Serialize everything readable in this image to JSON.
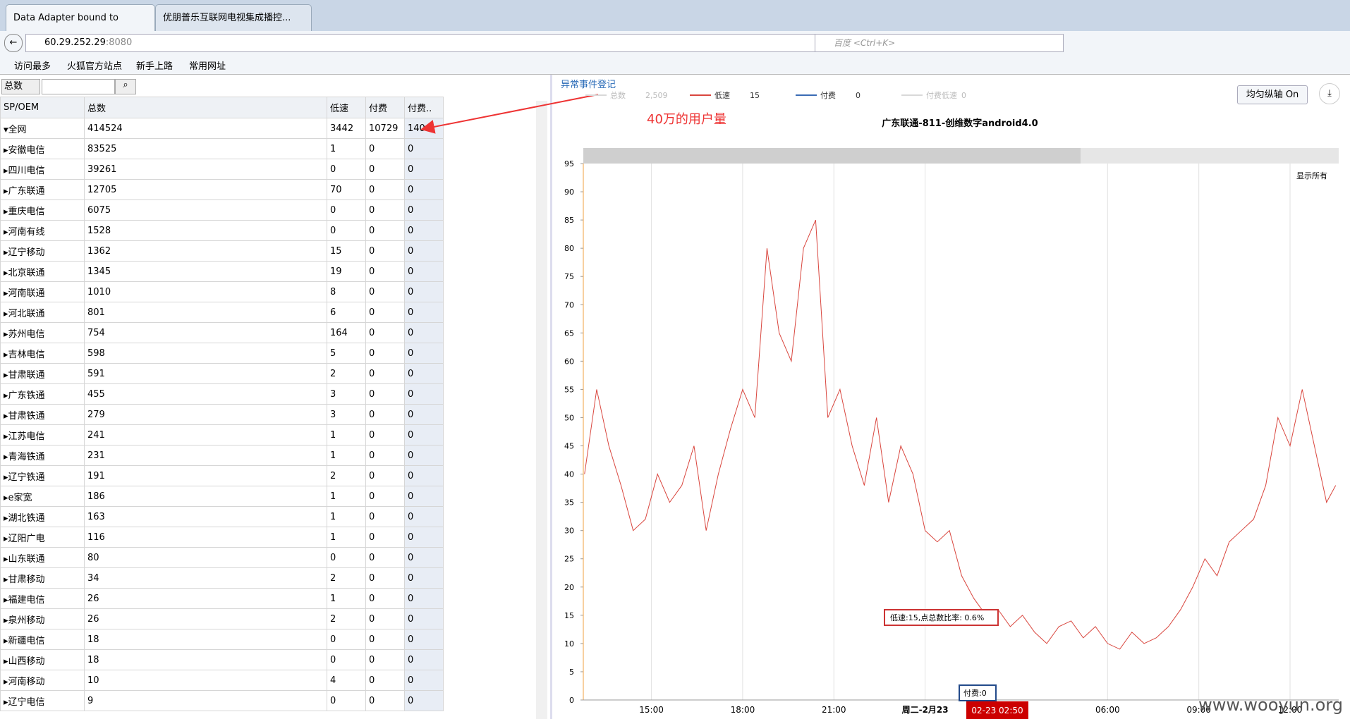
{
  "browser": {
    "tabs": [
      "Data Adapter bound to XML...",
      "优朋普乐互联网电视集成播控..."
    ],
    "url_host": "60.29.252.29",
    "url_port": ":8080",
    "search_placeholder": "百度 <Ctrl+K>",
    "bookmarks": [
      "访问最多",
      "火狐官方站点",
      "新手上路",
      "常用网址"
    ]
  },
  "filter": {
    "select": "总数"
  },
  "table": {
    "columns": [
      "SP/OEM",
      "总数",
      "低速",
      "付费",
      "付费.."
    ],
    "rows": [
      [
        "全网",
        414524,
        3442,
        10729,
        140
      ],
      [
        "安徽电信",
        83525,
        1,
        0,
        0
      ],
      [
        "四川电信",
        39261,
        0,
        0,
        0
      ],
      [
        "广东联通",
        12705,
        70,
        0,
        0
      ],
      [
        "重庆电信",
        6075,
        0,
        0,
        0
      ],
      [
        "河南有线",
        1528,
        0,
        0,
        0
      ],
      [
        "辽宁移动",
        1362,
        15,
        0,
        0
      ],
      [
        "北京联通",
        1345,
        19,
        0,
        0
      ],
      [
        "河南联通",
        1010,
        8,
        0,
        0
      ],
      [
        "河北联通",
        801,
        6,
        0,
        0
      ],
      [
        "苏州电信",
        754,
        164,
        0,
        0
      ],
      [
        "吉林电信",
        598,
        5,
        0,
        0
      ],
      [
        "甘肃联通",
        591,
        2,
        0,
        0
      ],
      [
        "广东铁通",
        455,
        3,
        0,
        0
      ],
      [
        "甘肃铁通",
        279,
        3,
        0,
        0
      ],
      [
        "江苏电信",
        241,
        1,
        0,
        0
      ],
      [
        "青海铁通",
        231,
        1,
        0,
        0
      ],
      [
        "辽宁铁通",
        191,
        2,
        0,
        0
      ],
      [
        "e家宽",
        186,
        1,
        0,
        0
      ],
      [
        "湖北铁通",
        163,
        1,
        0,
        0
      ],
      [
        "辽阳广电",
        116,
        1,
        0,
        0
      ],
      [
        "山东联通",
        80,
        0,
        0,
        0
      ],
      [
        "甘肃移动",
        34,
        2,
        0,
        0
      ],
      [
        "福建电信",
        26,
        1,
        0,
        0
      ],
      [
        "泉州移动",
        26,
        2,
        0,
        0
      ],
      [
        "新疆电信",
        18,
        0,
        0,
        0
      ],
      [
        "山西移动",
        18,
        0,
        0,
        0
      ],
      [
        "河南移动",
        10,
        4,
        0,
        0
      ],
      [
        "辽宁电信",
        9,
        0,
        0,
        0
      ]
    ]
  },
  "annotation": "40万的用户量",
  "panel_title": "异常事件登记",
  "buttons": {
    "axis": "均匀纵轴 On",
    "show_all": "显示所有"
  },
  "chart_data": {
    "type": "line",
    "title": "广东联通-811-创维数字android4.0",
    "legend": [
      {
        "name": "总数",
        "value": 2509,
        "value_label": "2,509",
        "color": "#d8d8d8"
      },
      {
        "name": "低速",
        "value": 15,
        "color": "#d9463e"
      },
      {
        "name": "付费",
        "value": 0,
        "color": "#3a6bb5"
      },
      {
        "name": "付费低速",
        "value": 0,
        "color": "#d8d8d8"
      }
    ],
    "x": [
      12.8,
      13.2,
      13.6,
      14.0,
      14.4,
      14.8,
      15.2,
      15.6,
      16.0,
      16.4,
      16.8,
      17.2,
      17.6,
      18.0,
      18.4,
      18.8,
      19.2,
      19.6,
      20.0,
      20.4,
      20.8,
      21.2,
      21.6,
      22.0,
      22.4,
      22.8,
      23.2,
      23.6,
      24.0,
      24.4,
      24.8,
      25.2,
      25.6,
      26.0,
      26.4,
      26.8,
      27.2,
      27.6,
      28.0,
      28.4,
      28.8,
      29.2,
      29.6,
      30.0,
      30.4,
      30.8,
      31.2,
      31.6,
      32.0,
      32.4,
      32.8,
      33.2,
      33.6,
      34.0,
      34.4,
      34.8,
      35.2,
      35.6,
      36.0,
      36.4,
      36.8,
      37.2,
      37.5
    ],
    "series": [
      {
        "color": "#d9463e",
        "values": [
          40,
          55,
          45,
          38,
          30,
          32,
          40,
          35,
          38,
          45,
          30,
          40,
          48,
          55,
          50,
          80,
          65,
          60,
          80,
          85,
          50,
          55,
          45,
          38,
          50,
          35,
          45,
          40,
          30,
          28,
          30,
          22,
          18,
          15,
          16,
          13,
          15,
          12,
          10,
          13,
          14,
          11,
          13,
          10,
          9,
          12,
          10,
          11,
          13,
          16,
          20,
          25,
          22,
          28,
          30,
          32,
          38,
          50,
          45,
          55,
          45,
          35,
          38
        ]
      }
    ],
    "xlim": [
      12.76,
      37.6
    ],
    "xticks": [
      {
        "value": 15,
        "label": "15:00"
      },
      {
        "value": 18,
        "label": "18:00"
      },
      {
        "value": 21,
        "label": "21:00"
      },
      {
        "value": 24,
        "label": "周二-2月23"
      },
      {
        "value": 30,
        "label": "06:00"
      },
      {
        "value": 33,
        "label": "09:00"
      },
      {
        "value": 36,
        "label": "12:00"
      }
    ],
    "ylim": [
      0,
      95
    ],
    "yticks": [
      0,
      5,
      10,
      15,
      20,
      25,
      30,
      35,
      40,
      45,
      50,
      55,
      60,
      65,
      70,
      75,
      80,
      85,
      90,
      95
    ],
    "grid": true,
    "tooltip": "低速:15,点总数比率: 0.6%",
    "tooltip2": "付费:0",
    "cursor_time": "02-23 02:50"
  },
  "watermark": "www.wooyun.org"
}
